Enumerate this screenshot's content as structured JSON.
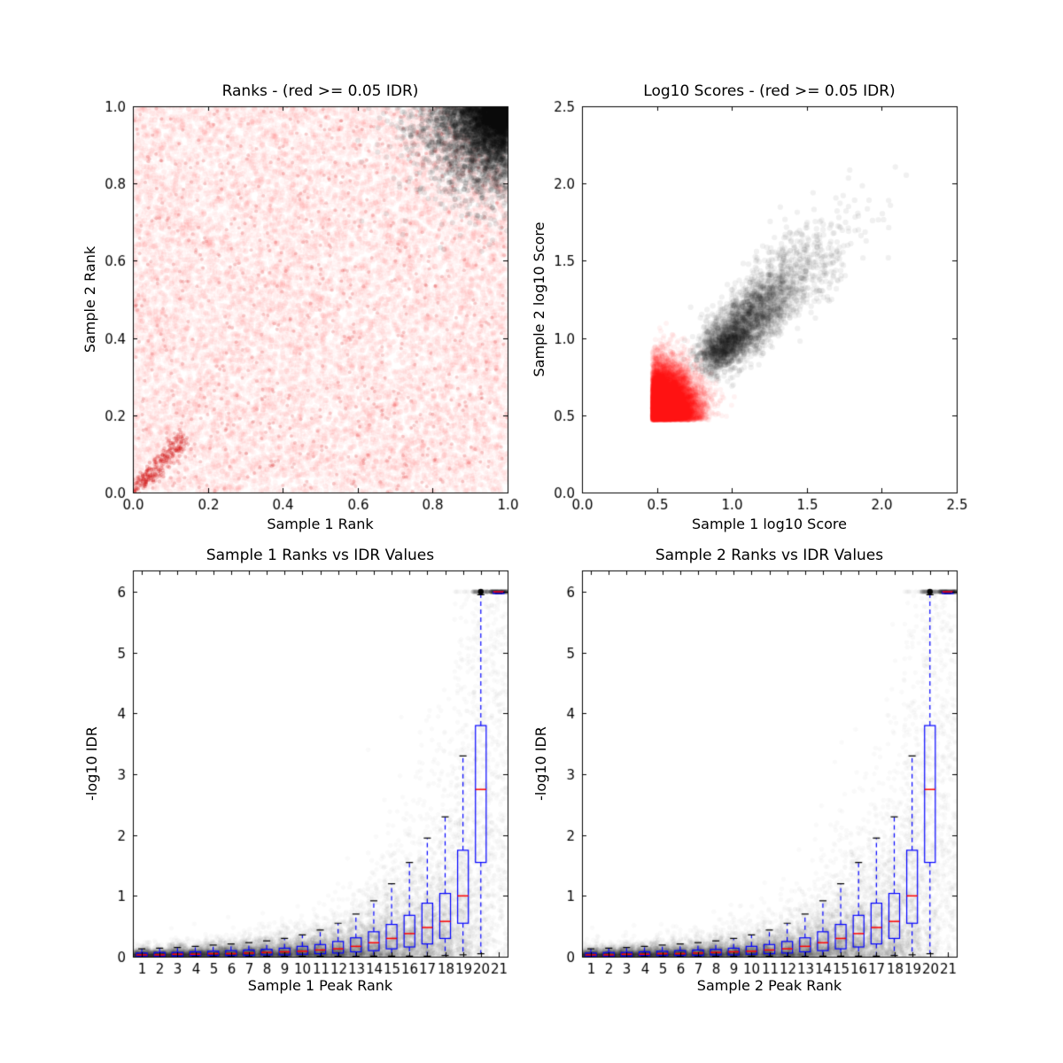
{
  "figure": {
    "background": "#ffffff"
  },
  "chart_data": [
    {
      "type": "scatter",
      "title": "Ranks - (red >= 0.05 IDR)",
      "xlabel": "Sample 1 Rank",
      "ylabel": "Sample 2 Rank",
      "xlim": [
        0.0,
        1.0
      ],
      "ylim": [
        0.0,
        1.0
      ],
      "xticks": [
        0.0,
        0.2,
        0.4,
        0.6,
        0.8,
        1.0
      ],
      "xtick_labels": [
        "0.0",
        "0.2",
        "0.4",
        "0.6",
        "0.8",
        "1.0"
      ],
      "yticks": [
        0.0,
        0.2,
        0.4,
        0.6,
        0.8,
        1.0
      ],
      "ytick_labels": [
        "0.0",
        "0.2",
        "0.4",
        "0.6",
        "0.8",
        "1.0"
      ],
      "series": [
        {
          "name": "irreproducible-red",
          "color": "#ff0000",
          "gen": "uniform",
          "n": 16000,
          "alpha": 0.035,
          "r": 3.2
        },
        {
          "name": "irreproducible-red-speckle",
          "color": "#cc0000",
          "gen": "uniform",
          "n": 700,
          "alpha": 0.18,
          "r": 2.0
        },
        {
          "name": "diagonal-accent-red",
          "color": "#cc0000",
          "gen": "diag",
          "extent": 0.14,
          "n": 250,
          "alpha": 0.22,
          "r": 2.2
        },
        {
          "name": "reproducible-black-corner",
          "color": "#000000",
          "gen": "corner",
          "sigma": 0.12,
          "n": 5200,
          "alpha": 0.09,
          "r": 3.0
        }
      ]
    },
    {
      "type": "scatter",
      "title": "Log10 Scores - (red >= 0.05 IDR)",
      "xlabel": "Sample 1 log10 Score",
      "ylabel": "Sample 2 log10 Score",
      "xlim": [
        0.0,
        2.5
      ],
      "ylim": [
        0.0,
        2.5
      ],
      "xticks": [
        0.0,
        0.5,
        1.0,
        1.5,
        2.0,
        2.5
      ],
      "xtick_labels": [
        "0.0",
        "0.5",
        "1.0",
        "1.5",
        "2.0",
        "2.5"
      ],
      "yticks": [
        0.0,
        0.5,
        1.0,
        1.5,
        2.0,
        2.5
      ],
      "ytick_labels": [
        "0.0",
        "0.5",
        "1.0",
        "1.5",
        "2.0",
        "2.5"
      ],
      "series": [
        {
          "name": "irreproducible-red-blob",
          "color": "#ff0000",
          "gen": "halfnormal",
          "origin": [
            0.47,
            0.47
          ],
          "sigma": [
            0.13,
            0.15
          ],
          "n": 15000,
          "alpha": 0.05,
          "r": 3.0
        },
        {
          "name": "reproducible-black-diagonal",
          "color": "#000000",
          "gen": "diagcloud",
          "base": 0.86,
          "spread": 0.32,
          "jitter": 0.065,
          "n": 3200,
          "alpha": 0.06,
          "r": 3.2
        }
      ]
    },
    {
      "type": "boxplot",
      "title": "Sample 1 Ranks vs IDR Values",
      "xlabel": "Sample 1 Peak Rank",
      "ylabel": "-log10 IDR",
      "xlim": [
        0.5,
        21.5
      ],
      "ylim": [
        0.0,
        6.35
      ],
      "categories": [
        1,
        2,
        3,
        4,
        5,
        6,
        7,
        8,
        9,
        10,
        11,
        12,
        13,
        14,
        15,
        16,
        17,
        18,
        19,
        20,
        21
      ],
      "xtick_labels": [
        "1",
        "2",
        "3",
        "4",
        "5",
        "6",
        "7",
        "8",
        "9",
        "10",
        "11",
        "12",
        "13",
        "14",
        "15",
        "16",
        "17",
        "18",
        "19",
        "20",
        "21"
      ],
      "yticks": [
        0,
        1,
        2,
        3,
        4,
        5,
        6
      ],
      "ytick_labels": [
        "0",
        "1",
        "2",
        "3",
        "4",
        "5",
        "6"
      ],
      "box_colors": {
        "box": "#0000ff",
        "median": "#ff0000",
        "whisker": "#0000ff",
        "cap": "#000000",
        "flier": "#000000"
      },
      "box": {
        "q1": [
          0.01,
          0.01,
          0.01,
          0.02,
          0.02,
          0.02,
          0.02,
          0.03,
          0.03,
          0.04,
          0.05,
          0.06,
          0.08,
          0.1,
          0.13,
          0.16,
          0.21,
          0.3,
          0.55,
          1.55,
          5.97
        ],
        "median": [
          0.03,
          0.03,
          0.04,
          0.04,
          0.05,
          0.05,
          0.06,
          0.07,
          0.08,
          0.09,
          0.11,
          0.13,
          0.17,
          0.23,
          0.3,
          0.38,
          0.48,
          0.58,
          1.0,
          2.75,
          6.0
        ],
        "q3": [
          0.06,
          0.07,
          0.07,
          0.08,
          0.09,
          0.1,
          0.11,
          0.12,
          0.14,
          0.17,
          0.2,
          0.25,
          0.31,
          0.41,
          0.53,
          0.68,
          0.88,
          1.04,
          1.75,
          3.8,
          6.0
        ],
        "whisker_low": [
          0.005,
          0.005,
          0.005,
          0.005,
          0.005,
          0.005,
          0.005,
          0.005,
          0.005,
          0.005,
          0.005,
          0.005,
          0.005,
          0.01,
          0.01,
          0.01,
          0.01,
          0.02,
          0.03,
          0.05,
          5.97
        ],
        "whisker_high": [
          0.13,
          0.14,
          0.15,
          0.17,
          0.19,
          0.21,
          0.23,
          0.26,
          0.3,
          0.36,
          0.44,
          0.55,
          0.7,
          0.92,
          1.2,
          1.55,
          1.95,
          2.3,
          3.3,
          5.95,
          6.0
        ],
        "fliers": [
          [
            20,
            6.0
          ]
        ]
      },
      "scatter": {
        "color": "#000000",
        "alpha": 0.022,
        "n_per_rank": 650,
        "r": 2.8,
        "distribution": "exponential-capped-at-6"
      }
    },
    {
      "type": "boxplot",
      "title": "Sample 2 Ranks vs IDR Values",
      "xlabel": "Sample 2 Peak Rank",
      "ylabel": "-log10 IDR",
      "xlim": [
        0.5,
        21.5
      ],
      "ylim": [
        0.0,
        6.35
      ],
      "categories": [
        1,
        2,
        3,
        4,
        5,
        6,
        7,
        8,
        9,
        10,
        11,
        12,
        13,
        14,
        15,
        16,
        17,
        18,
        19,
        20,
        21
      ],
      "xtick_labels": [
        "1",
        "2",
        "3",
        "4",
        "5",
        "6",
        "7",
        "8",
        "9",
        "10",
        "11",
        "12",
        "13",
        "14",
        "15",
        "16",
        "17",
        "18",
        "19",
        "20",
        "21"
      ],
      "yticks": [
        0,
        1,
        2,
        3,
        4,
        5,
        6
      ],
      "ytick_labels": [
        "0",
        "1",
        "2",
        "3",
        "4",
        "5",
        "6"
      ],
      "box_colors": {
        "box": "#0000ff",
        "median": "#ff0000",
        "whisker": "#0000ff",
        "cap": "#000000",
        "flier": "#000000"
      },
      "box": {
        "q1": [
          0.01,
          0.01,
          0.01,
          0.02,
          0.02,
          0.02,
          0.02,
          0.03,
          0.03,
          0.04,
          0.05,
          0.06,
          0.08,
          0.1,
          0.13,
          0.16,
          0.21,
          0.3,
          0.55,
          1.55,
          5.97
        ],
        "median": [
          0.03,
          0.03,
          0.04,
          0.04,
          0.05,
          0.05,
          0.06,
          0.07,
          0.08,
          0.09,
          0.11,
          0.13,
          0.17,
          0.23,
          0.3,
          0.38,
          0.48,
          0.58,
          1.0,
          2.75,
          6.0
        ],
        "q3": [
          0.06,
          0.07,
          0.07,
          0.08,
          0.09,
          0.1,
          0.11,
          0.12,
          0.14,
          0.17,
          0.2,
          0.25,
          0.31,
          0.41,
          0.53,
          0.68,
          0.88,
          1.04,
          1.75,
          3.8,
          6.0
        ],
        "whisker_low": [
          0.005,
          0.005,
          0.005,
          0.005,
          0.005,
          0.005,
          0.005,
          0.005,
          0.005,
          0.005,
          0.005,
          0.005,
          0.005,
          0.01,
          0.01,
          0.01,
          0.01,
          0.02,
          0.03,
          0.05,
          5.97
        ],
        "whisker_high": [
          0.13,
          0.14,
          0.15,
          0.17,
          0.19,
          0.21,
          0.23,
          0.26,
          0.3,
          0.36,
          0.44,
          0.55,
          0.7,
          0.92,
          1.2,
          1.55,
          1.95,
          2.3,
          3.3,
          5.95,
          6.0
        ],
        "fliers": [
          [
            20,
            6.0
          ]
        ]
      },
      "scatter": {
        "color": "#000000",
        "alpha": 0.022,
        "n_per_rank": 650,
        "r": 2.8,
        "distribution": "exponential-capped-at-6"
      }
    }
  ]
}
